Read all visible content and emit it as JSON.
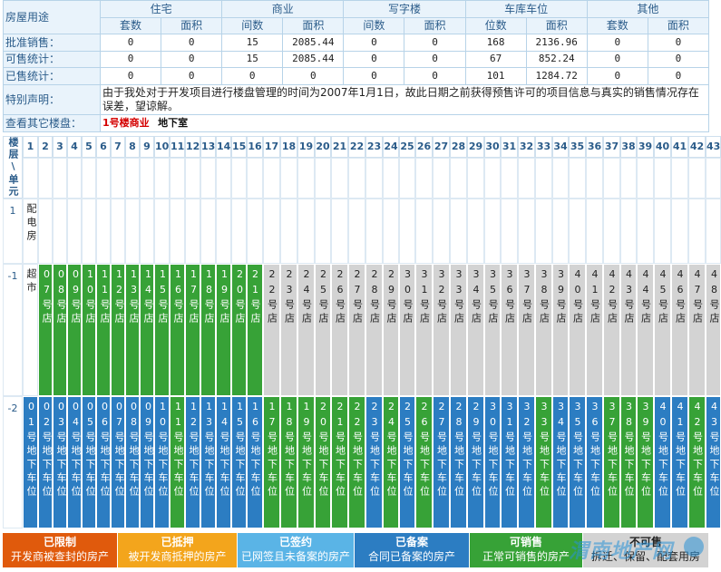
{
  "summary": {
    "col_label": "房屋用途",
    "groups": [
      "住宅",
      "商业",
      "写字楼",
      "车库车位",
      "其他"
    ],
    "subheaders": [
      "套数",
      "面积",
      "间数",
      "面积",
      "间数",
      "面积",
      "位数",
      "面积",
      "套数",
      "面积"
    ],
    "rows": [
      {
        "label": "批准销售：",
        "values": [
          "0",
          "0",
          "15",
          "2085.44",
          "0",
          "0",
          "168",
          "2136.96",
          "0",
          "0"
        ]
      },
      {
        "label": "可售统计：",
        "values": [
          "0",
          "0",
          "15",
          "2085.44",
          "0",
          "0",
          "67",
          "852.24",
          "0",
          "0"
        ]
      },
      {
        "label": "已售统计：",
        "values": [
          "0",
          "0",
          "0",
          "0",
          "0",
          "0",
          "101",
          "1284.72",
          "0",
          "0"
        ]
      }
    ],
    "notice_label": "特别声明：",
    "notice_text": "由于我处对于开发项目进行楼盘管理的时间为2007年1月1日，故此日期之前获得预售许可的项目信息与真实的销售情况存在误差，望谅解。",
    "other_label": "查看其它楼盘：",
    "building_active": "1号楼商业",
    "building_other": "地下室"
  },
  "grid": {
    "corner": "楼层\\单元",
    "units": [
      "1",
      "2",
      "3",
      "4",
      "5",
      "6",
      "7",
      "8",
      "9",
      "10",
      "11",
      "12",
      "13",
      "14",
      "15",
      "16",
      "17",
      "18",
      "19",
      "20",
      "21",
      "22",
      "23",
      "24",
      "25",
      "26",
      "27",
      "28",
      "29",
      "30",
      "31",
      "32",
      "33",
      "34",
      "35",
      "36",
      "37",
      "38",
      "39",
      "40",
      "41",
      "42",
      "43"
    ],
    "floors": [
      {
        "label": "1",
        "cells": [
          {
            "t": "配电房",
            "s": "white"
          }
        ]
      },
      {
        "label": "-1",
        "cells": [
          {
            "t": "超市",
            "s": "white"
          },
          {
            "t": "07号店",
            "s": "green"
          },
          {
            "t": "08号店",
            "s": "green"
          },
          {
            "t": "09号店",
            "s": "green"
          },
          {
            "t": "10号店",
            "s": "green"
          },
          {
            "t": "11号店",
            "s": "green"
          },
          {
            "t": "12号店",
            "s": "green"
          },
          {
            "t": "13号店",
            "s": "green"
          },
          {
            "t": "14号店",
            "s": "green"
          },
          {
            "t": "15号店",
            "s": "green"
          },
          {
            "t": "16号店",
            "s": "green"
          },
          {
            "t": "17号店",
            "s": "green"
          },
          {
            "t": "18号店",
            "s": "green"
          },
          {
            "t": "19号店",
            "s": "green"
          },
          {
            "t": "20号店",
            "s": "green"
          },
          {
            "t": "21号店",
            "s": "green"
          },
          {
            "t": "22号店",
            "s": "gray"
          },
          {
            "t": "23号店",
            "s": "gray"
          },
          {
            "t": "24号店",
            "s": "gray"
          },
          {
            "t": "25号店",
            "s": "gray"
          },
          {
            "t": "26号店",
            "s": "gray"
          },
          {
            "t": "27号店",
            "s": "gray"
          },
          {
            "t": "28号店",
            "s": "gray"
          },
          {
            "t": "29号店",
            "s": "gray"
          },
          {
            "t": "30号店",
            "s": "gray"
          },
          {
            "t": "31号店",
            "s": "gray"
          },
          {
            "t": "32号店",
            "s": "gray"
          },
          {
            "t": "33号店",
            "s": "gray"
          },
          {
            "t": "34号店",
            "s": "gray"
          },
          {
            "t": "35号店",
            "s": "gray"
          },
          {
            "t": "36号店",
            "s": "gray"
          },
          {
            "t": "37号店",
            "s": "gray"
          },
          {
            "t": "38号店",
            "s": "gray"
          },
          {
            "t": "39号店",
            "s": "gray"
          },
          {
            "t": "40号店",
            "s": "gray"
          },
          {
            "t": "41号店",
            "s": "gray"
          },
          {
            "t": "42号店",
            "s": "gray"
          },
          {
            "t": "43号店",
            "s": "gray"
          },
          {
            "t": "44号店",
            "s": "gray"
          },
          {
            "t": "45号店",
            "s": "gray"
          },
          {
            "t": "46号店",
            "s": "gray"
          },
          {
            "t": "47号店",
            "s": "gray"
          },
          {
            "t": "48号店",
            "s": "gray"
          }
        ]
      },
      {
        "label": "-2",
        "cells": [
          {
            "t": "01号地下车位",
            "s": "blue"
          },
          {
            "t": "02号地下车位",
            "s": "blue"
          },
          {
            "t": "03号地下车位",
            "s": "blue"
          },
          {
            "t": "04号地下车位",
            "s": "blue"
          },
          {
            "t": "05号地下车位",
            "s": "blue"
          },
          {
            "t": "06号地下车位",
            "s": "blue"
          },
          {
            "t": "07号地下车位",
            "s": "blue"
          },
          {
            "t": "08号地下车位",
            "s": "blue"
          },
          {
            "t": "09号地下车位",
            "s": "blue"
          },
          {
            "t": "10号地下车位",
            "s": "blue"
          },
          {
            "t": "11号地下车位",
            "s": "green"
          },
          {
            "t": "12号地下车位",
            "s": "blue"
          },
          {
            "t": "13号地下车位",
            "s": "blue"
          },
          {
            "t": "14号地下车位",
            "s": "blue"
          },
          {
            "t": "15号地下车位",
            "s": "blue"
          },
          {
            "t": "16号地下车位",
            "s": "blue"
          },
          {
            "t": "17号地下车位",
            "s": "green"
          },
          {
            "t": "18号地下车位",
            "s": "green"
          },
          {
            "t": "19号地下车位",
            "s": "green"
          },
          {
            "t": "20号地下车位",
            "s": "green"
          },
          {
            "t": "21号地下车位",
            "s": "green"
          },
          {
            "t": "22号地下车位",
            "s": "green"
          },
          {
            "t": "23号地下车位",
            "s": "blue"
          },
          {
            "t": "24号地下车位",
            "s": "green"
          },
          {
            "t": "25号地下车位",
            "s": "blue"
          },
          {
            "t": "26号地下车位",
            "s": "green"
          },
          {
            "t": "27号地下车位",
            "s": "blue"
          },
          {
            "t": "28号地下车位",
            "s": "blue"
          },
          {
            "t": "29号地下车位",
            "s": "blue"
          },
          {
            "t": "30号地下车位",
            "s": "blue"
          },
          {
            "t": "31号地下车位",
            "s": "blue"
          },
          {
            "t": "32号地下车位",
            "s": "blue"
          },
          {
            "t": "33号地下车位",
            "s": "green"
          },
          {
            "t": "34号地下车位",
            "s": "blue"
          },
          {
            "t": "35号地下车位",
            "s": "blue"
          },
          {
            "t": "36号地下车位",
            "s": "blue"
          },
          {
            "t": "37号地下车位",
            "s": "green"
          },
          {
            "t": "38号地下车位",
            "s": "green"
          },
          {
            "t": "39号地下车位",
            "s": "green"
          },
          {
            "t": "40号地下车位",
            "s": "blue"
          },
          {
            "t": "41号地下车位",
            "s": "blue"
          },
          {
            "t": "42号地下车位",
            "s": "green"
          },
          {
            "t": "43号地下车位",
            "s": "blue"
          }
        ]
      }
    ]
  },
  "legend": [
    {
      "title": "已限制",
      "desc": "开发商被查封的房产",
      "color": "#e05a0c"
    },
    {
      "title": "已抵押",
      "desc": "被开发商抵押的房产",
      "color": "#f3a51c"
    },
    {
      "title": "已签约",
      "desc": "已网签且未备案的房产",
      "color": "#5ab4e6"
    },
    {
      "title": "已备案",
      "desc": "合同已备案的房产",
      "color": "#2c7dc2"
    },
    {
      "title": "可销售",
      "desc": "正常可销售的房产",
      "color": "#37a237"
    },
    {
      "title": "不可售",
      "desc": "拆迁、保留、配套用房",
      "color": "#d3d3d3"
    }
  ],
  "watermark": "渭南地产网",
  "colors": {
    "green": "#37a237",
    "gray": "#d3d3d3",
    "blue": "#2c7dc2",
    "header_text": "#2b5c8a",
    "border": "#b7d3e8"
  }
}
